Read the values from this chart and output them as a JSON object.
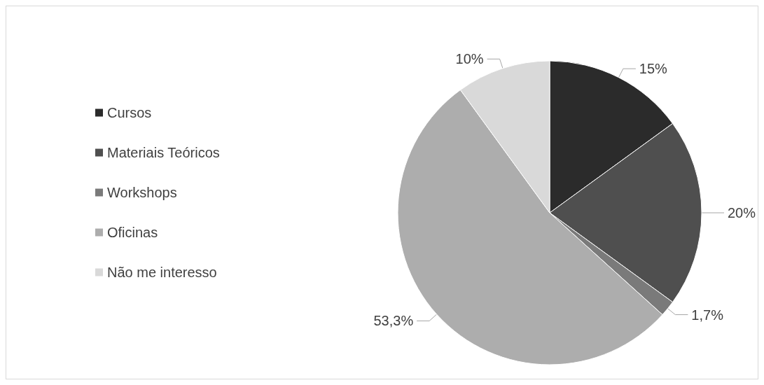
{
  "chart_data": {
    "type": "pie",
    "categories": [
      "Cursos",
      "Materiais Teóricos",
      "Workshops",
      "Oficinas",
      "Não me interesso"
    ],
    "values": [
      15,
      20,
      1.7,
      53.3,
      10
    ],
    "colors": [
      "#2b2b2b",
      "#4f4f4f",
      "#7a7a7a",
      "#adadad",
      "#d9d9d9"
    ],
    "value_labels": [
      "15%",
      "20%",
      "1,7%",
      "53,3%",
      "10%"
    ],
    "legend": "left"
  }
}
